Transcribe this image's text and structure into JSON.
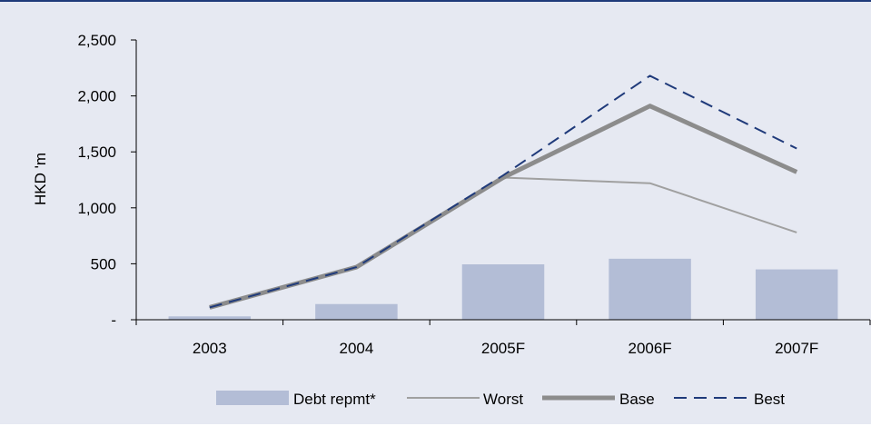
{
  "chart_data": {
    "type": "bar",
    "categories": [
      "2003",
      "2004",
      "2005F",
      "2006F",
      "2007F"
    ],
    "ylabel": "HKD 'm",
    "xlabel": "",
    "ylim": [
      0,
      2500
    ],
    "yticks": [
      0,
      500,
      1000,
      1500,
      2000,
      2500
    ],
    "ytick_labels": [
      "-",
      "500",
      "1,000",
      "1,500",
      "2,000",
      "2,500"
    ],
    "grid": false,
    "legend_position": "bottom",
    "series": [
      {
        "name": "Debt repmt*",
        "kind": "bar",
        "color": "#b3bdd6",
        "values": [
          30,
          140,
          495,
          545,
          450
        ]
      },
      {
        "name": "Worst",
        "kind": "line",
        "color": "#a0a0a0",
        "style": "solid-thin",
        "values": [
          110,
          470,
          1270,
          1220,
          780
        ]
      },
      {
        "name": "Base",
        "kind": "line",
        "color": "#8c8c8c",
        "style": "solid-thick",
        "values": [
          110,
          470,
          1270,
          1910,
          1320
        ]
      },
      {
        "name": "Best",
        "kind": "line",
        "color": "#1f3a7a",
        "style": "dashed",
        "values": [
          110,
          470,
          1290,
          2180,
          1530
        ]
      }
    ]
  }
}
